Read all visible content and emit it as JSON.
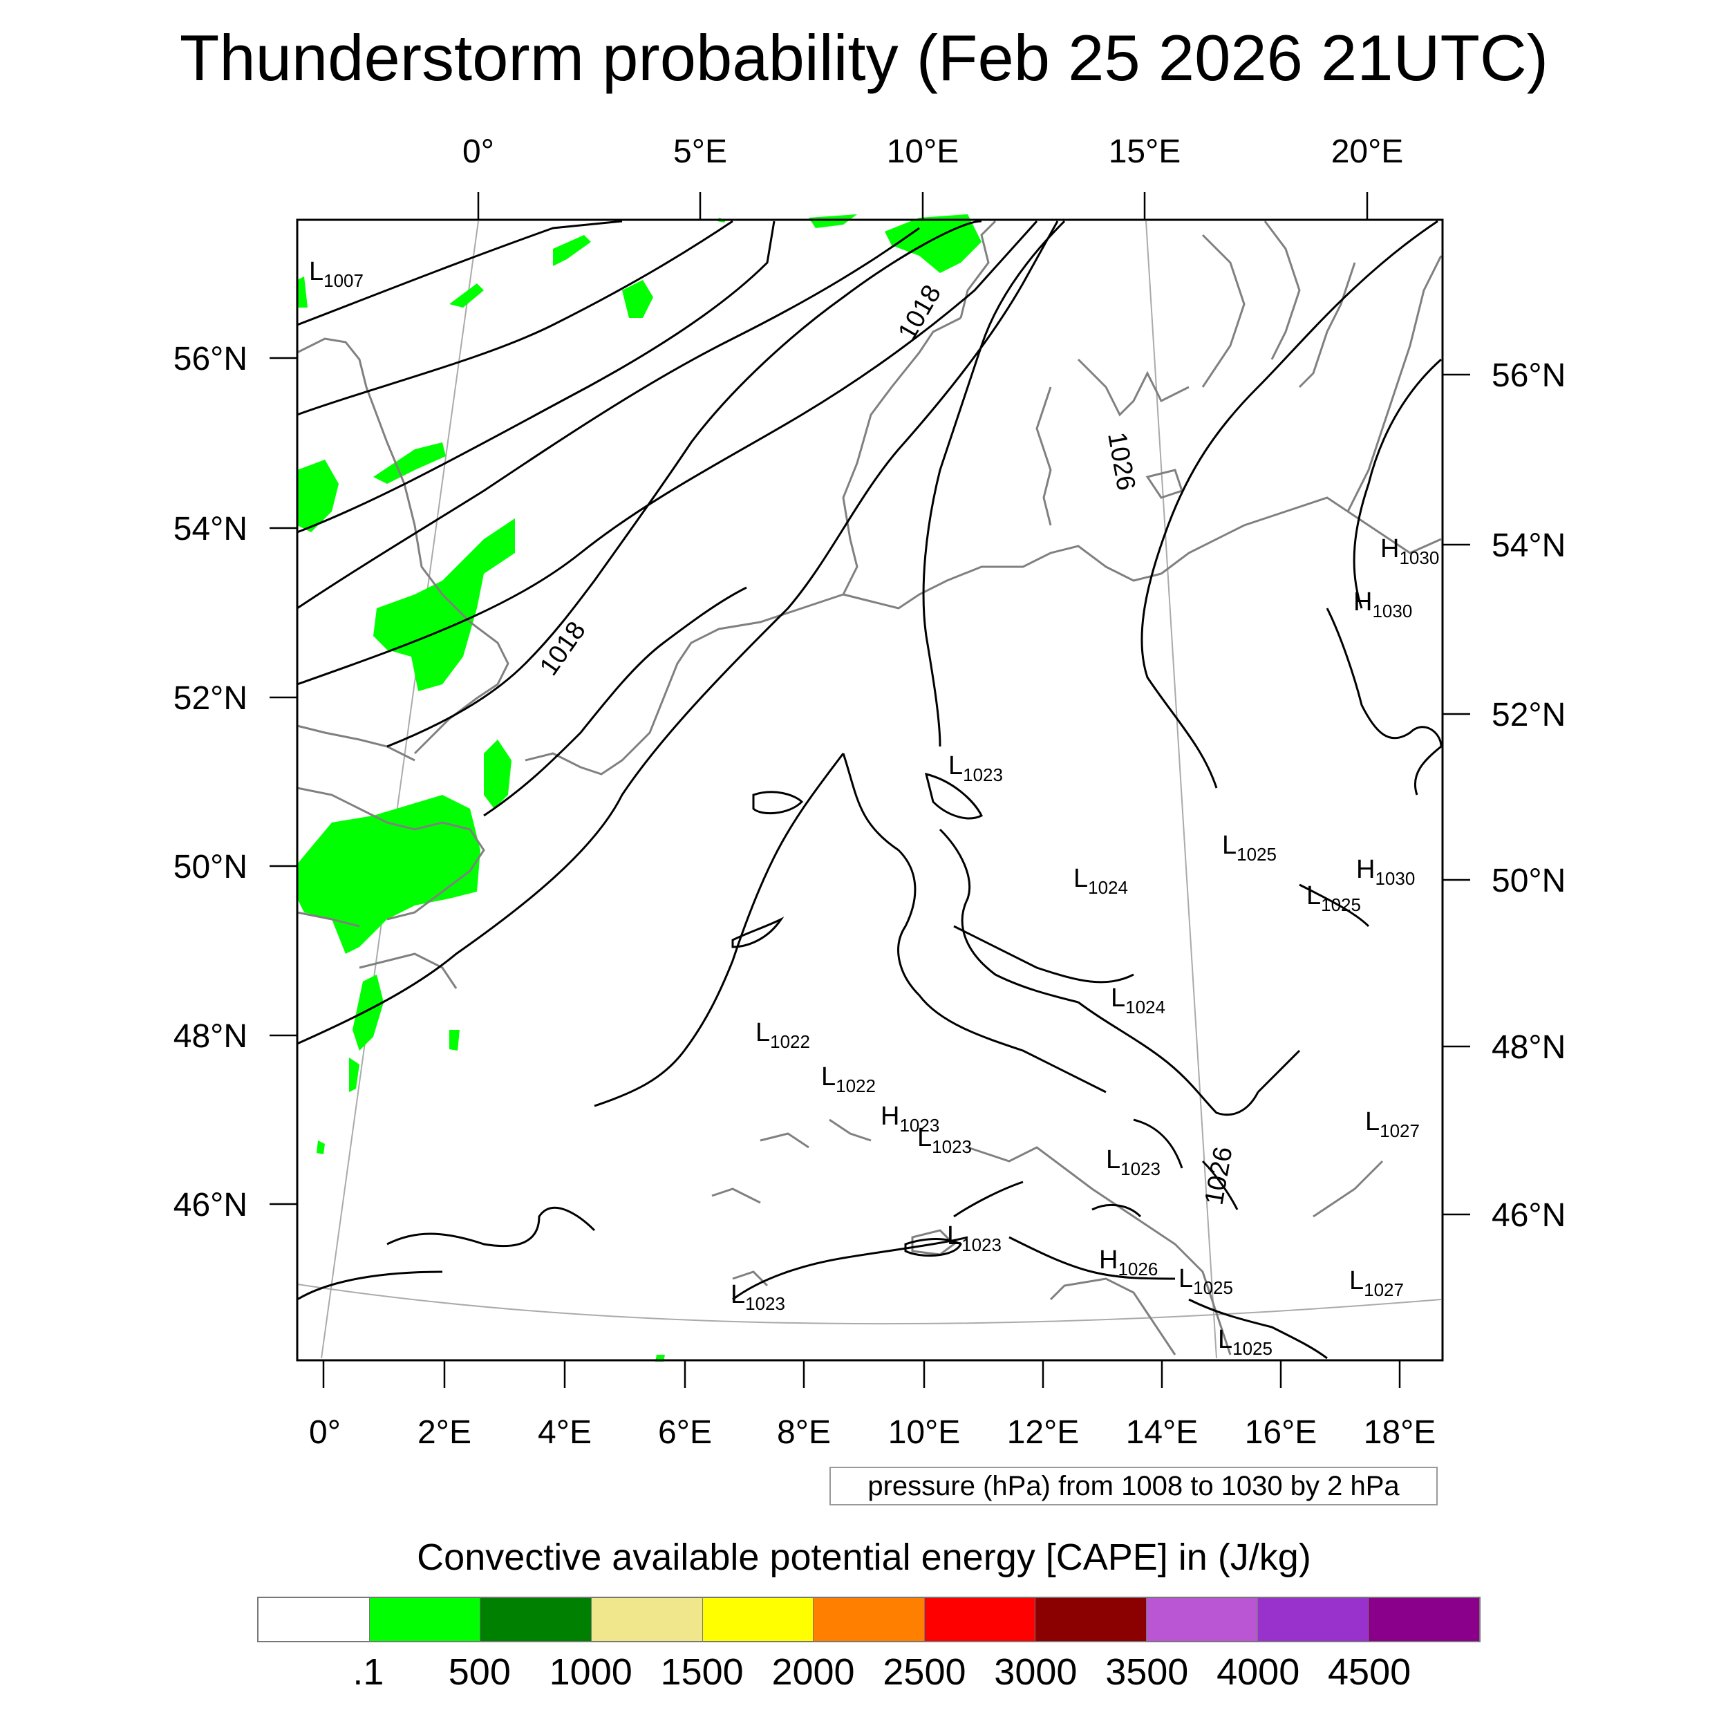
{
  "title": "Thunderstorm probability (Feb 25 2026 21UTC)",
  "top_lon_labels": [
    "0°",
    "5°E",
    "10°E",
    "15°E",
    "20°E"
  ],
  "bottom_lon_labels": [
    "0°",
    "2°E",
    "4°E",
    "6°E",
    "8°E",
    "10°E",
    "12°E",
    "14°E",
    "16°E",
    "18°E"
  ],
  "left_lat_labels": [
    "56°N",
    "54°N",
    "52°N",
    "50°N",
    "48°N",
    "46°N"
  ],
  "right_lat_labels": [
    "56°N",
    "54°N",
    "52°N",
    "50°N",
    "48°N",
    "46°N"
  ],
  "isobar_labels": [
    "1018",
    "1018",
    "1026",
    "1026"
  ],
  "pressure_centers": [
    {
      "type": "L",
      "value": "1007"
    },
    {
      "type": "L",
      "value": "1023"
    },
    {
      "type": "L",
      "value": "1024"
    },
    {
      "type": "L",
      "value": "1024"
    },
    {
      "type": "L",
      "value": "1025"
    },
    {
      "type": "L",
      "value": "1025"
    },
    {
      "type": "H",
      "value": "1030"
    },
    {
      "type": "H",
      "value": "1030"
    },
    {
      "type": "H",
      "value": "1030"
    },
    {
      "type": "L",
      "value": "1022"
    },
    {
      "type": "L",
      "value": "1022"
    },
    {
      "type": "H",
      "value": "1023"
    },
    {
      "type": "L",
      "value": "1023"
    },
    {
      "type": "L",
      "value": "1023"
    },
    {
      "type": "L",
      "value": "1023"
    },
    {
      "type": "L",
      "value": "1023"
    },
    {
      "type": "H",
      "value": "1026"
    },
    {
      "type": "L",
      "value": "1025"
    },
    {
      "type": "L",
      "value": "1025"
    },
    {
      "type": "L",
      "value": "1027"
    },
    {
      "type": "L",
      "value": "1027"
    }
  ],
  "legend_note": "pressure (hPa) from 1008 to 1030 by 2 hPa",
  "colorbar": {
    "title": "Convective available potential energy [CAPE] in (J/kg)",
    "colors": [
      "#ffffff",
      "#00ff00",
      "#008000",
      "#f0e68c",
      "#ffff00",
      "#ff8000",
      "#ff0000",
      "#8b0000",
      "#ba55d3",
      "#9932cc",
      "#8b008b"
    ],
    "tick_labels": [
      ".1",
      "500",
      "1000",
      "1500",
      "2000",
      "2500",
      "3000",
      "3500",
      "4000",
      "4500"
    ]
  },
  "colors": {
    "cape_low": "#00ff00",
    "coast": "#808080",
    "isobar": "#000000"
  }
}
